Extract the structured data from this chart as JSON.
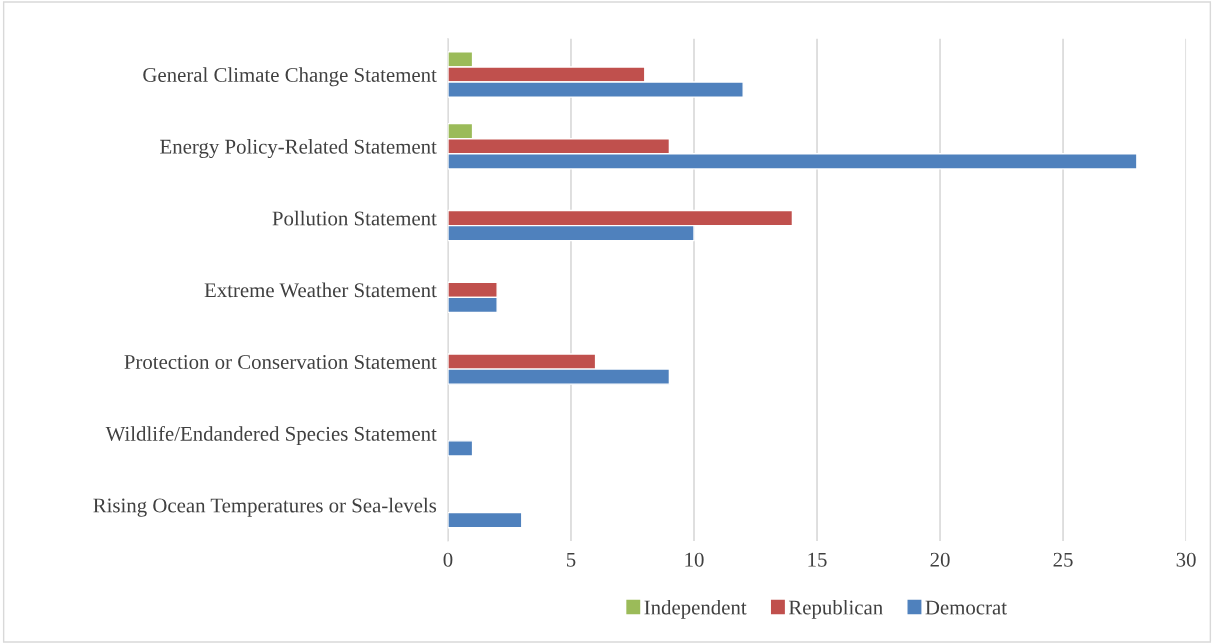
{
  "chart_data": {
    "type": "bar",
    "orientation": "horizontal",
    "categories": [
      "General Climate Change Statement",
      "Energy Policy-Related Statement",
      "Pollution Statement",
      "Extreme Weather Statement",
      "Protection or Conservation Statement",
      "Wildlife/Endandered Species Statement",
      "Rising Ocean Temperatures or Sea-levels"
    ],
    "series": [
      {
        "name": "Independent",
        "color": "#9bbb59",
        "values": [
          1,
          1,
          null,
          null,
          null,
          null,
          null
        ]
      },
      {
        "name": "Republican",
        "color": "#c0504d",
        "values": [
          8,
          9,
          14,
          2,
          6,
          null,
          null
        ]
      },
      {
        "name": "Democrat",
        "color": "#4f81bd",
        "values": [
          12,
          28,
          10,
          2,
          9,
          1,
          3
        ]
      }
    ],
    "xlim": [
      0,
      30
    ],
    "xticks": [
      0,
      5,
      10,
      15,
      20,
      25,
      30
    ],
    "grid": "x",
    "legend": "bottom"
  }
}
